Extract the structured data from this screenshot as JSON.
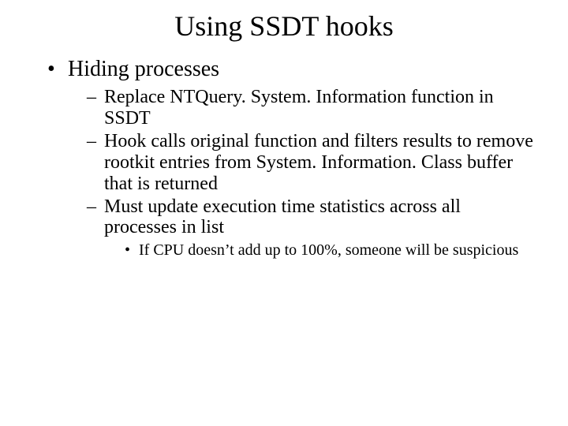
{
  "slide": {
    "title": "Using SSDT hooks",
    "title_fontsize": 36,
    "body_font_family": "Times New Roman",
    "background_color": "#ffffff",
    "text_color": "#000000",
    "bullets": {
      "lvl1": [
        {
          "text": "Hiding processes",
          "fontsize": 28,
          "children": [
            {
              "text": "Replace NTQuery. System. Information function in SSDT",
              "fontsize": 24
            },
            {
              "text": "Hook calls original function and filters results to remove rootkit entries from System. Information. Class buffer that is returned",
              "fontsize": 24
            },
            {
              "text": "Must update execution time statistics across all processes in list",
              "fontsize": 24,
              "children": [
                {
                  "text": "If CPU doesn’t add up to 100%, someone will be suspicious",
                  "fontsize": 20
                }
              ]
            }
          ]
        }
      ]
    }
  }
}
